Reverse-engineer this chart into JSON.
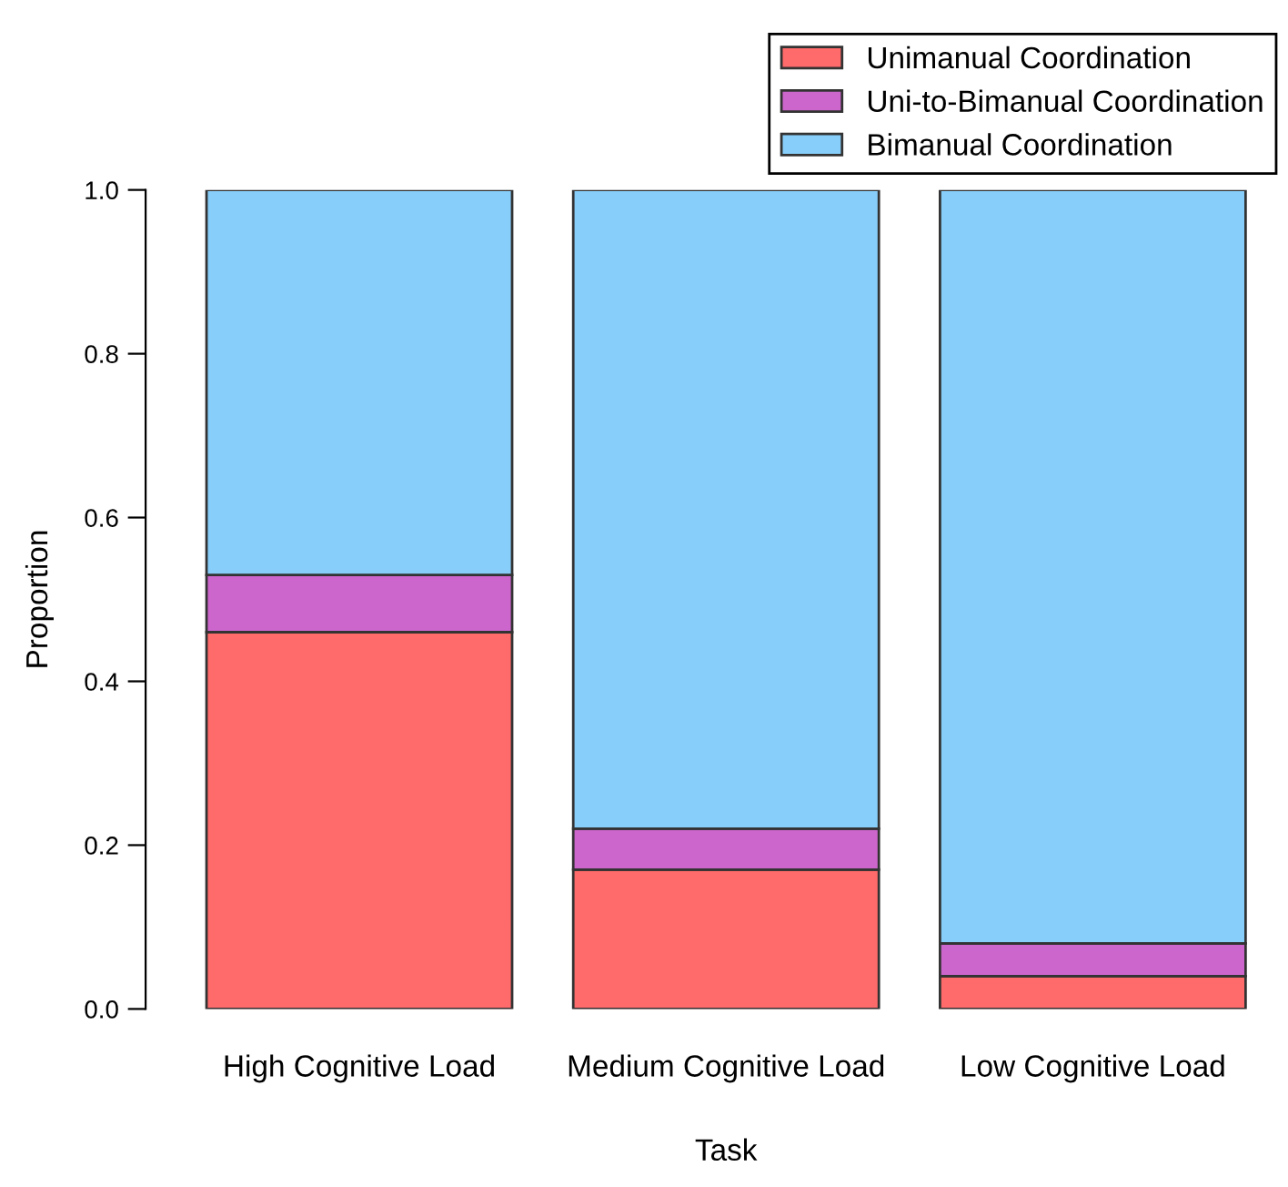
{
  "chart_data": {
    "type": "bar",
    "stacked": true,
    "xlabel": "Task",
    "ylabel": "Proportion",
    "categories": [
      "High Cognitive Load",
      "Medium Cognitive Load",
      "Low Cognitive Load"
    ],
    "series": [
      {
        "name": "Unimanual Coordination",
        "color": "#ff6a6a",
        "values": [
          0.46,
          0.17,
          0.04
        ]
      },
      {
        "name": "Uni-to-Bimanual Coordination",
        "color": "#cc66cc",
        "values": [
          0.07,
          0.05,
          0.04
        ]
      },
      {
        "name": "Bimanual Coordination",
        "color": "#87cefa",
        "values": [
          0.47,
          0.78,
          0.92
        ]
      }
    ],
    "ylim": [
      0,
      1
    ],
    "yticks": [
      {
        "value": 0,
        "label": "0.0"
      },
      {
        "value": 0.2,
        "label": "0.2"
      },
      {
        "value": 0.4,
        "label": "0.4"
      },
      {
        "value": 0.6,
        "label": "0.6"
      },
      {
        "value": 0.8,
        "label": "0.8"
      },
      {
        "value": 1.0,
        "label": "1.0"
      }
    ],
    "legend": "top right",
    "grid": false
  }
}
